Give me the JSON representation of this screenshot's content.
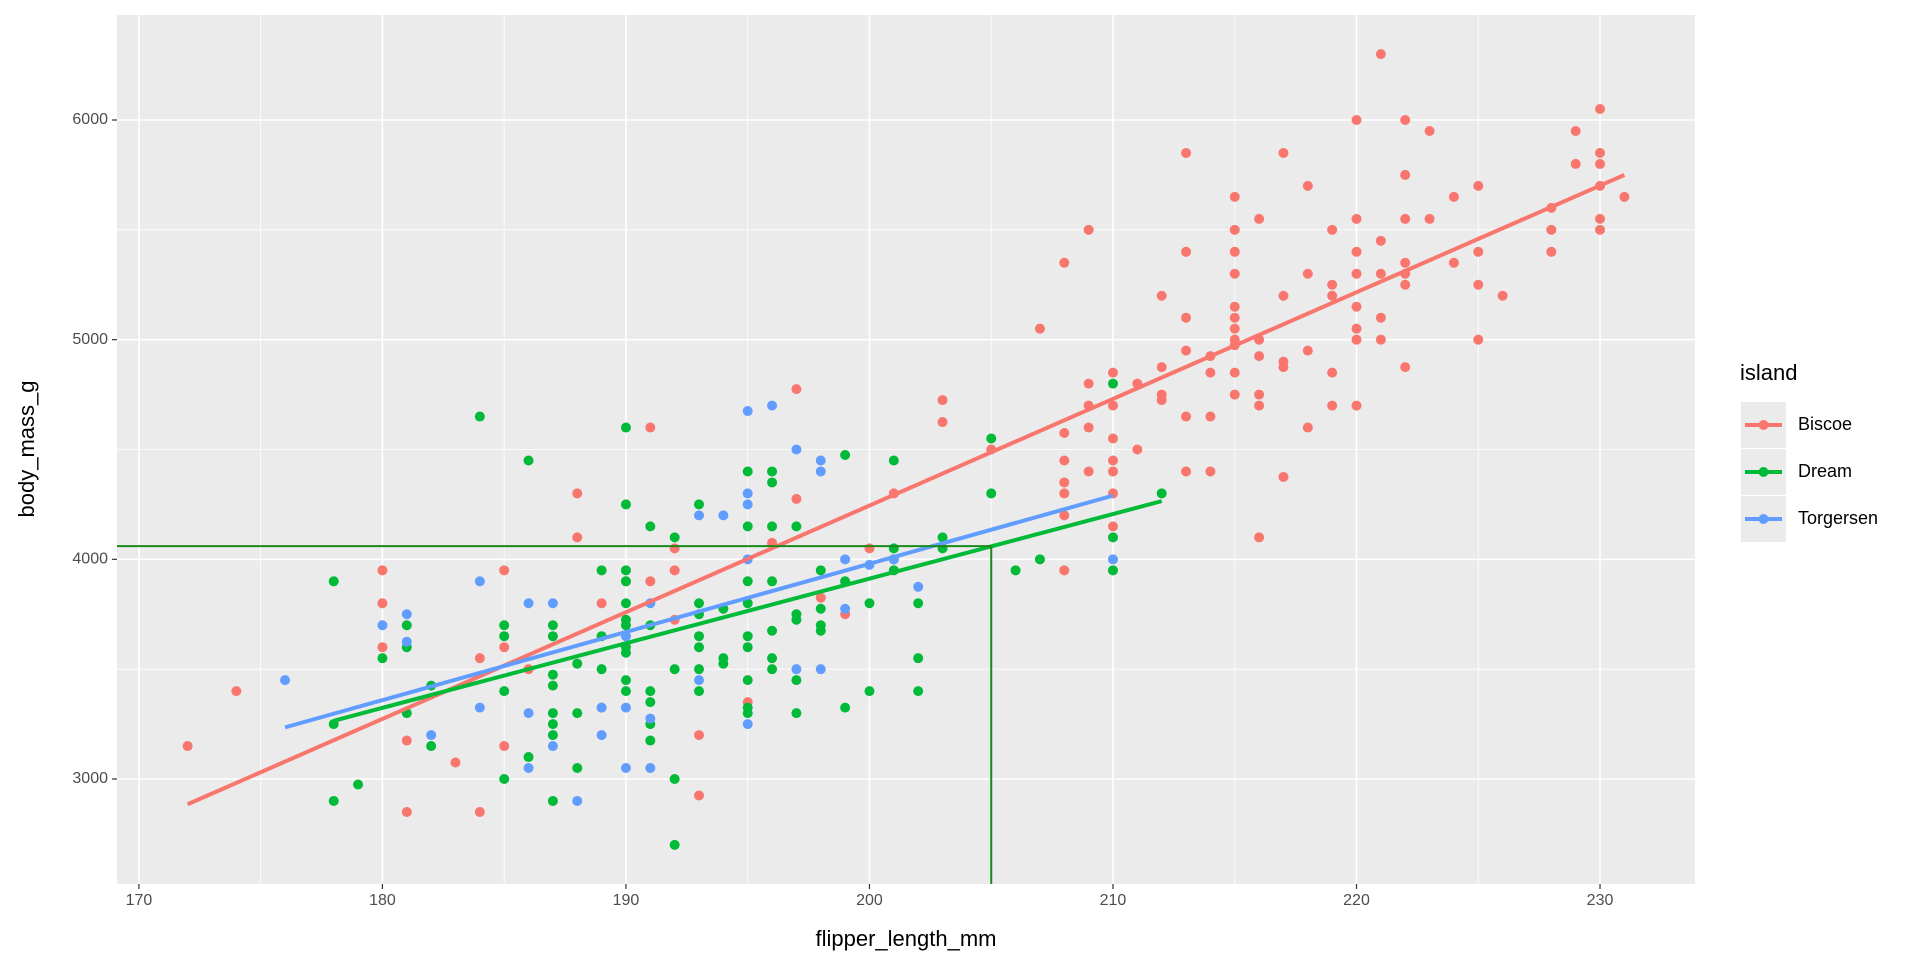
{
  "chart_data": {
    "type": "scatter",
    "x_label": "flipper_length_mm",
    "y_label": "body_mass_g",
    "legend_title": "island",
    "legend_position": "right",
    "grid": true,
    "xlim": [
      169.1,
      233.9
    ],
    "ylim": [
      2522,
      6478
    ],
    "xticks": [
      170,
      180,
      190,
      200,
      210,
      220,
      230
    ],
    "yticks": [
      3000,
      4000,
      5000,
      6000
    ],
    "reference_lines": {
      "x": 205,
      "y": 4060,
      "color": "#1a8a1a"
    },
    "series": [
      {
        "name": "Biscoe",
        "color": "#F8766D",
        "x": [
          172,
          174,
          180,
          180,
          180,
          181,
          181,
          183,
          184,
          184,
          185,
          185,
          185,
          186,
          188,
          188,
          189,
          190,
          191,
          191,
          192,
          192,
          192,
          193,
          193,
          195,
          196,
          197,
          197,
          198,
          199,
          200,
          201,
          203,
          203,
          205,
          207,
          208,
          208,
          208,
          208,
          208,
          208,
          208,
          209,
          209,
          209,
          209,
          209,
          210,
          210,
          210,
          210,
          210,
          210,
          210,
          211,
          211,
          212,
          212,
          212,
          212,
          213,
          213,
          213,
          213,
          213,
          213,
          214,
          214,
          214,
          214,
          215,
          215,
          215,
          215,
          215,
          215,
          215,
          215,
          215,
          215,
          215,
          216,
          216,
          216,
          216,
          216,
          216,
          217,
          217,
          217,
          217,
          217,
          218,
          218,
          218,
          218,
          219,
          219,
          219,
          219,
          219,
          220,
          220,
          220,
          220,
          220,
          220,
          220,
          220,
          221,
          221,
          221,
          221,
          221,
          222,
          222,
          222,
          222,
          222,
          222,
          222,
          223,
          223,
          224,
          224,
          225,
          225,
          225,
          225,
          226,
          228,
          228,
          228,
          229,
          229,
          230,
          230,
          230,
          230,
          230,
          230,
          231
        ],
        "values": [
          3150,
          3400,
          3950,
          3800,
          3600,
          3175,
          2850,
          3075,
          3550,
          2850,
          3950,
          3600,
          3150,
          3500,
          4300,
          4100,
          3800,
          3900,
          4600,
          3900,
          4050,
          3950,
          3725,
          3200,
          2925,
          3350,
          4075,
          4775,
          4275,
          3825,
          3750,
          4050,
          4300,
          4725,
          4625,
          4500,
          5050,
          5350,
          4575,
          4450,
          4350,
          4300,
          4200,
          3950,
          5500,
          4800,
          4700,
          4600,
          4400,
          4850,
          4700,
          4550,
          4450,
          4400,
          4300,
          4150,
          4800,
          4500,
          5200,
          4875,
          4750,
          4725,
          5850,
          5400,
          5100,
          4950,
          4650,
          4400,
          4850,
          4925,
          4650,
          4400,
          5650,
          5500,
          5400,
          5300,
          5150,
          5100,
          5050,
          5000,
          4975,
          4850,
          4750,
          5550,
          5000,
          4925,
          4750,
          4700,
          4100,
          5850,
          5200,
          4900,
          4875,
          4375,
          5700,
          5300,
          4950,
          4600,
          5500,
          5250,
          5200,
          4850,
          4700,
          6000,
          5550,
          5400,
          5300,
          5150,
          5050,
          5000,
          4700,
          6300,
          5450,
          5300,
          5100,
          5000,
          6000,
          5750,
          5550,
          5350,
          5300,
          5250,
          4875,
          5950,
          5550,
          5650,
          5350,
          5700,
          5400,
          5250,
          5000,
          5200,
          5600,
          5500,
          5400,
          5950,
          5800,
          6050,
          5850,
          5800,
          5700,
          5550,
          5500,
          5650
        ],
        "fit": {
          "x": [
            172,
            231
          ],
          "values": [
            2885,
            5750
          ]
        }
      },
      {
        "name": "Dream",
        "color": "#00BA38",
        "x": [
          178,
          178,
          178,
          179,
          180,
          181,
          181,
          181,
          182,
          182,
          184,
          185,
          185,
          185,
          185,
          186,
          186,
          187,
          187,
          187,
          187,
          187,
          187,
          187,
          187,
          188,
          188,
          188,
          189,
          189,
          189,
          189,
          190,
          190,
          190,
          190,
          190,
          190,
          190,
          190,
          190,
          190,
          190,
          191,
          191,
          191,
          191,
          191,
          191,
          192,
          192,
          192,
          192,
          193,
          193,
          193,
          193,
          193,
          193,
          193,
          194,
          194,
          194,
          195,
          195,
          195,
          195,
          195,
          195,
          195,
          195,
          195,
          196,
          196,
          196,
          196,
          196,
          196,
          196,
          197,
          197,
          197,
          197,
          197,
          198,
          198,
          198,
          198,
          199,
          199,
          199,
          200,
          200,
          201,
          201,
          201,
          201,
          202,
          202,
          202,
          203,
          203,
          205,
          205,
          206,
          207,
          210,
          210,
          210,
          212
        ],
        "values": [
          3900,
          3250,
          2900,
          2975,
          3550,
          3700,
          3600,
          3300,
          3425,
          3150,
          4650,
          3700,
          3650,
          3400,
          3000,
          4450,
          3100,
          3700,
          3650,
          3475,
          3425,
          3300,
          3250,
          3200,
          2900,
          3525,
          3300,
          3050,
          3950,
          3650,
          3500,
          3325,
          4600,
          4250,
          3950,
          3900,
          3800,
          3725,
          3700,
          3600,
          3575,
          3450,
          3400,
          4150,
          3700,
          3400,
          3350,
          3250,
          3175,
          4100,
          3500,
          3000,
          2700,
          4250,
          3800,
          3750,
          3650,
          3600,
          3500,
          3400,
          3550,
          3525,
          3775,
          4400,
          4150,
          3900,
          3800,
          3650,
          3600,
          3450,
          3325,
          3300,
          4400,
          4350,
          4150,
          3900,
          3675,
          3550,
          3500,
          4150,
          3750,
          3725,
          3450,
          3300,
          3950,
          3775,
          3700,
          3675,
          4475,
          3900,
          3325,
          3800,
          3400,
          4450,
          4050,
          4000,
          3950,
          3800,
          3550,
          3400,
          4100,
          4050,
          4550,
          4300,
          3950,
          4000,
          4800,
          4100,
          3950,
          4300
        ],
        "fit": {
          "x": [
            178,
            212
          ],
          "values": [
            3265,
            4265
          ]
        }
      },
      {
        "name": "Torgersen",
        "color": "#619CFF",
        "x": [
          176,
          180,
          181,
          181,
          182,
          184,
          184,
          186,
          186,
          186,
          187,
          187,
          188,
          189,
          189,
          190,
          190,
          190,
          191,
          191,
          191,
          193,
          193,
          194,
          195,
          195,
          195,
          195,
          195,
          196,
          197,
          197,
          198,
          198,
          198,
          199,
          199,
          200,
          201,
          202,
          210
        ],
        "values": [
          3450,
          3700,
          3750,
          3625,
          3200,
          3900,
          3325,
          3800,
          3300,
          3050,
          3800,
          3150,
          2900,
          3325,
          3200,
          3650,
          3325,
          3050,
          3800,
          3275,
          3050,
          4200,
          3450,
          4200,
          4675,
          4300,
          4250,
          4000,
          3250,
          4700,
          4500,
          3500,
          4450,
          4400,
          3500,
          4000,
          3775,
          3975,
          4000,
          3875,
          4000
        ],
        "fit": {
          "x": [
            176,
            210
          ],
          "values": [
            3235,
            4290
          ]
        }
      }
    ]
  }
}
